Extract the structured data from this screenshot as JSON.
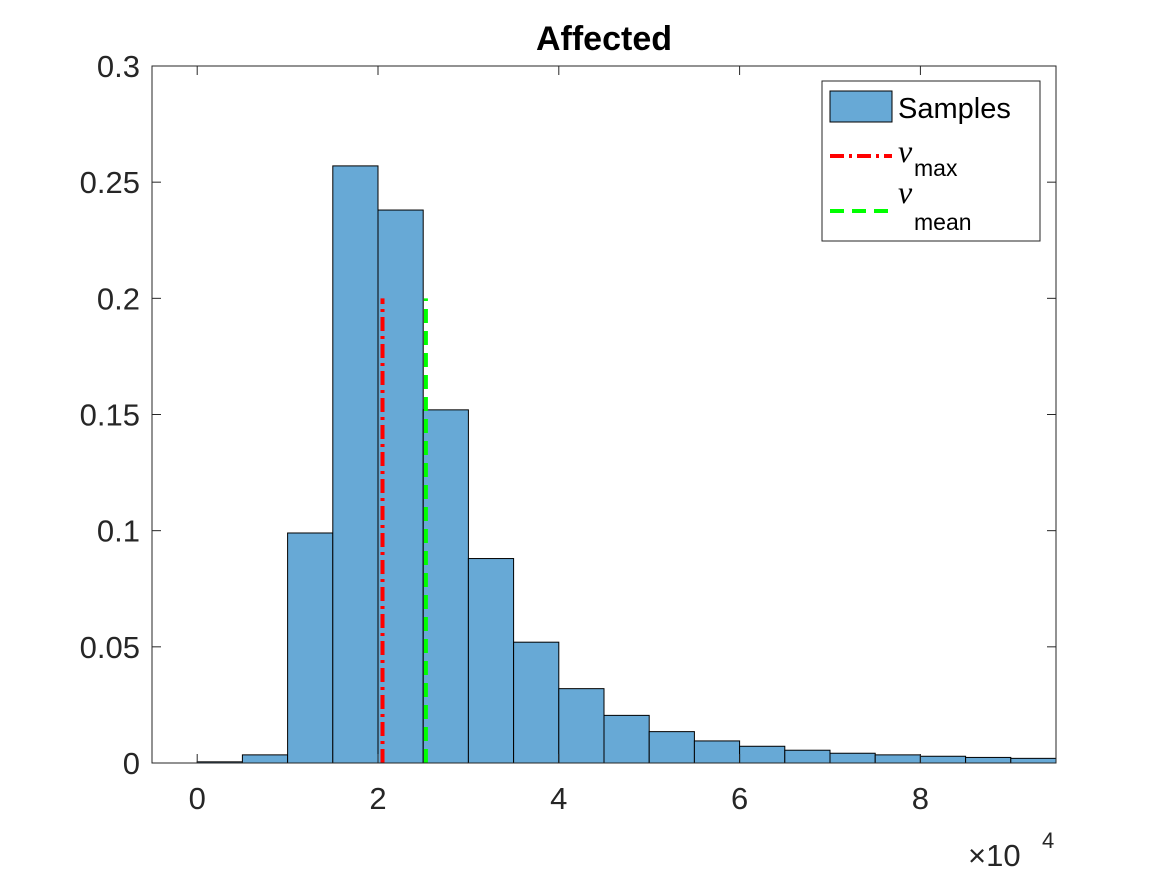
{
  "chart_data": {
    "type": "bar",
    "title": "Affected",
    "xlabel": "",
    "ylabel": "",
    "x_exponent_base": "×10",
    "x_exponent_power": "4",
    "xlim": [
      -0.5,
      9.5
    ],
    "ylim": [
      0,
      0.3
    ],
    "xticks": [
      0,
      2,
      4,
      6,
      8
    ],
    "xtick_labels": [
      "0",
      "2",
      "4",
      "6",
      "8"
    ],
    "yticks": [
      0,
      0.05,
      0.1,
      0.15,
      0.2,
      0.25,
      0.3
    ],
    "ytick_labels": [
      "0",
      "0.05",
      "0.1",
      "0.15",
      "0.2",
      "0.25",
      "0.3"
    ],
    "bin_edges": [
      0,
      0.5,
      1.0,
      1.5,
      2.0,
      2.5,
      3.0,
      3.5,
      4.0,
      4.5,
      5.0,
      5.5,
      6.0,
      6.5,
      7.0,
      7.5,
      8.0,
      8.5,
      9.0,
      9.5
    ],
    "values": [
      0.0005,
      0.0035,
      0.099,
      0.257,
      0.238,
      0.152,
      0.088,
      0.052,
      0.032,
      0.0205,
      0.0135,
      0.0095,
      0.0072,
      0.0055,
      0.0042,
      0.0035,
      0.0029,
      0.0024,
      0.002
    ],
    "bar_color": "#67a9d6",
    "bar_edge_color": "#000000",
    "lines": [
      {
        "name": "nu_max",
        "x": 2.05,
        "y_range": [
          0,
          0.2
        ],
        "color": "#ff0000",
        "style": "dash-dot"
      },
      {
        "name": "nu_mean",
        "x": 2.53,
        "y_range": [
          0,
          0.2
        ],
        "color": "#00ff00",
        "style": "dashed"
      }
    ],
    "legend": {
      "position": "top-right",
      "entries": [
        {
          "label": "Samples",
          "kind": "patch"
        },
        {
          "symbol": "ν",
          "subscript": "max",
          "kind": "line",
          "color": "#ff0000",
          "style": "dash-dot"
        },
        {
          "symbol": "ν",
          "subscript": "mean",
          "kind": "line",
          "color": "#00ff00",
          "style": "dashed"
        }
      ]
    }
  }
}
